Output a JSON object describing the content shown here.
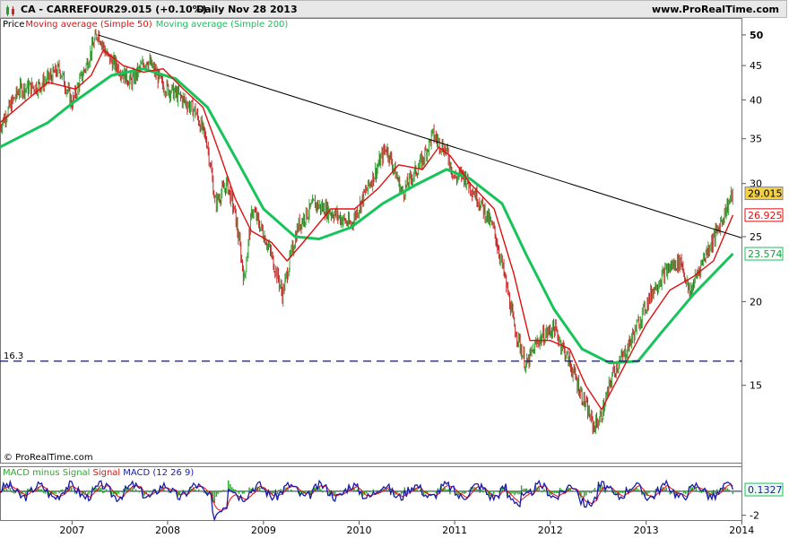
{
  "header": {
    "symbol": "CA - CARREFOUR",
    "price_change": "29.015 (+0.10%)",
    "period_date": "Daily  Nov 28 2013",
    "site": "www.ProRealTime.com"
  },
  "legend": {
    "price": "Price",
    "ma50": "Moving average (Simple 50)",
    "ma200": "Moving average (Simple 200)"
  },
  "watermark": "© ProRealTime.com",
  "macd_legend": {
    "hist": "MACD minus Signal",
    "signal": "Signal",
    "macd": "MACD (12 26 9)"
  },
  "colors": {
    "price_up": "#3aa53a",
    "price_down": "#c62828",
    "ma50": "#e01010",
    "ma200": "#16c45a",
    "trendline": "#000000",
    "support": "#1a1a5e",
    "macd": "#1a1aa8",
    "signal": "#e01010",
    "hist": "#2ea82e"
  },
  "chart_data": [
    {
      "type": "line",
      "title": "CA - CARREFOUR",
      "xlabel": "",
      "ylabel": "",
      "scale": "log",
      "ylim": [
        11.5,
        53
      ],
      "xlim": [
        "2006-04-01",
        "2013-12-31"
      ],
      "x_ticks": [
        "2007",
        "2008",
        "2009",
        "2010",
        "2011",
        "2012",
        "2013",
        "2014"
      ],
      "y_ticks": [
        15,
        20,
        25,
        30,
        35,
        40,
        45,
        50
      ],
      "series": [
        {
          "name": "Price",
          "points": [
            [
              "2006-04-01",
              36.5
            ],
            [
              "2006-06-15",
              41.5
            ],
            [
              "2006-09-01",
              42.0
            ],
            [
              "2006-11-15",
              44.5
            ],
            [
              "2007-01-01",
              39.5
            ],
            [
              "2007-03-01",
              45.5
            ],
            [
              "2007-04-10",
              50.5
            ],
            [
              "2007-05-15",
              46.5
            ],
            [
              "2007-07-01",
              44.5
            ],
            [
              "2007-08-15",
              42.5
            ],
            [
              "2007-10-15",
              46.0
            ],
            [
              "2007-12-15",
              42.0
            ],
            [
              "2008-02-15",
              40.5
            ],
            [
              "2008-04-15",
              38.5
            ],
            [
              "2008-06-01",
              34.5
            ],
            [
              "2008-07-01",
              28.0
            ],
            [
              "2008-08-15",
              30.0
            ],
            [
              "2008-09-15",
              27.0
            ],
            [
              "2008-10-20",
              21.5
            ],
            [
              "2008-11-20",
              27.5
            ],
            [
              "2009-01-15",
              24.5
            ],
            [
              "2009-03-01",
              21.5
            ],
            [
              "2009-03-15",
              20.5
            ],
            [
              "2009-05-15",
              26.0
            ],
            [
              "2009-07-15",
              28.0
            ],
            [
              "2009-10-01",
              27.0
            ],
            [
              "2009-12-01",
              26.0
            ],
            [
              "2010-03-01",
              31.0
            ],
            [
              "2010-04-15",
              34.0
            ],
            [
              "2010-06-15",
              29.0
            ],
            [
              "2010-09-01",
              32.5
            ],
            [
              "2010-10-10",
              35.5
            ],
            [
              "2010-12-01",
              33.5
            ],
            [
              "2011-01-01",
              30.5
            ],
            [
              "2011-02-01",
              31.0
            ],
            [
              "2011-04-01",
              28.5
            ],
            [
              "2011-06-01",
              25.5
            ],
            [
              "2011-08-15",
              18.5
            ],
            [
              "2011-10-01",
              16.0
            ],
            [
              "2011-11-15",
              17.5
            ],
            [
              "2012-01-15",
              18.3
            ],
            [
              "2012-03-15",
              16.2
            ],
            [
              "2012-05-01",
              14.5
            ],
            [
              "2012-06-15",
              13.0
            ],
            [
              "2012-07-15",
              13.5
            ],
            [
              "2012-09-01",
              15.8
            ],
            [
              "2012-10-15",
              16.8
            ],
            [
              "2012-12-01",
              18.5
            ],
            [
              "2013-02-01",
              21.0
            ],
            [
              "2013-04-01",
              22.5
            ],
            [
              "2013-05-15",
              23.0
            ],
            [
              "2013-06-15",
              20.5
            ],
            [
              "2013-08-15",
              23.5
            ],
            [
              "2013-10-01",
              25.5
            ],
            [
              "2013-11-28",
              29.015
            ]
          ]
        },
        {
          "name": "Moving average (Simple 50)",
          "points": [
            [
              "2006-04-01",
              37.0
            ],
            [
              "2006-10-01",
              42.5
            ],
            [
              "2007-01-15",
              41.5
            ],
            [
              "2007-03-15",
              43.5
            ],
            [
              "2007-05-01",
              47.5
            ],
            [
              "2007-07-15",
              45.0
            ],
            [
              "2007-10-01",
              44.0
            ],
            [
              "2007-12-15",
              44.5
            ],
            [
              "2008-03-01",
              41.5
            ],
            [
              "2008-05-15",
              39.0
            ],
            [
              "2008-07-15",
              33.5
            ],
            [
              "2008-09-15",
              28.5
            ],
            [
              "2008-11-15",
              25.5
            ],
            [
              "2009-02-01",
              24.5
            ],
            [
              "2009-04-01",
              23.0
            ],
            [
              "2009-06-01",
              24.5
            ],
            [
              "2009-09-15",
              27.5
            ],
            [
              "2009-12-15",
              27.5
            ],
            [
              "2010-03-15",
              29.5
            ],
            [
              "2010-06-01",
              32.0
            ],
            [
              "2010-09-01",
              31.5
            ],
            [
              "2010-11-01",
              34.0
            ],
            [
              "2010-12-15",
              33.0
            ],
            [
              "2011-03-01",
              30.0
            ],
            [
              "2011-06-01",
              27.5
            ],
            [
              "2011-08-15",
              22.0
            ],
            [
              "2011-10-15",
              17.5
            ],
            [
              "2012-01-01",
              17.5
            ],
            [
              "2012-03-15",
              17.0
            ],
            [
              "2012-05-15",
              15.0
            ],
            [
              "2012-07-15",
              13.8
            ],
            [
              "2012-10-01",
              15.8
            ],
            [
              "2013-01-01",
              18.5
            ],
            [
              "2013-04-01",
              20.8
            ],
            [
              "2013-07-01",
              21.8
            ],
            [
              "2013-09-15",
              23.0
            ],
            [
              "2013-11-28",
              26.925
            ]
          ]
        },
        {
          "name": "Moving average (Simple 200)",
          "points": [
            [
              "2006-04-01",
              34.0
            ],
            [
              "2006-10-01",
              37.0
            ],
            [
              "2007-01-01",
              39.5
            ],
            [
              "2007-06-01",
              43.5
            ],
            [
              "2007-10-01",
              44.5
            ],
            [
              "2008-02-01",
              43.0
            ],
            [
              "2008-06-01",
              39.0
            ],
            [
              "2008-10-01",
              32.0
            ],
            [
              "2009-01-01",
              27.5
            ],
            [
              "2009-05-01",
              25.0
            ],
            [
              "2009-08-01",
              24.8
            ],
            [
              "2009-12-01",
              25.8
            ],
            [
              "2010-04-01",
              28.0
            ],
            [
              "2010-08-01",
              29.8
            ],
            [
              "2010-12-01",
              31.5
            ],
            [
              "2011-03-01",
              30.5
            ],
            [
              "2011-07-01",
              28.0
            ],
            [
              "2011-10-01",
              23.5
            ],
            [
              "2012-01-15",
              19.5
            ],
            [
              "2012-05-01",
              17.0
            ],
            [
              "2012-08-15",
              16.2
            ],
            [
              "2012-12-01",
              16.3
            ],
            [
              "2013-03-01",
              18.0
            ],
            [
              "2013-07-01",
              20.5
            ],
            [
              "2013-11-28",
              23.574
            ]
          ]
        }
      ],
      "lines": [
        {
          "kind": "trendline",
          "from": [
            "2007-04-10",
            50.0
          ],
          "to": [
            "2013-12-31",
            24.9
          ]
        },
        {
          "kind": "horizontal",
          "label": "16.3",
          "value": 16.3
        }
      ],
      "value_labels": [
        "29.015",
        "26.925",
        "23.574"
      ]
    },
    {
      "type": "line",
      "title": "MACD (12 26 9)",
      "xlabel": "",
      "ylabel": "",
      "ylim": [
        -2.4,
        2.0
      ],
      "y_ticks": [
        -2
      ],
      "value_label": "0.1327",
      "series": [
        {
          "name": "MACD (12 26 9)",
          "values_summary": "oscillates near 0, trough about -2.1 in 2008-07"
        },
        {
          "name": "Signal",
          "values_summary": "smoothed MACD"
        },
        {
          "name": "MACD minus Signal",
          "values_summary": "histogram around 0"
        }
      ],
      "last_value": 0.1327
    }
  ]
}
